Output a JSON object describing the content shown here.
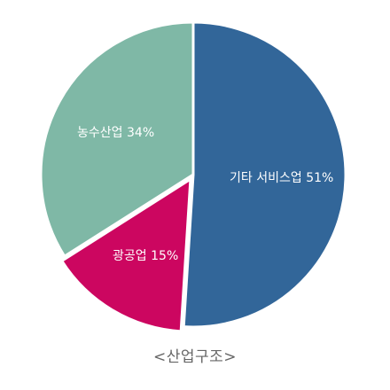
{
  "chart_data": {
    "type": "pie",
    "title": "",
    "caption": "<산업구조>",
    "slices": [
      {
        "label": "기타 서비스업",
        "value": 51,
        "value_text": "51%",
        "color": "#326699",
        "exploded": false
      },
      {
        "label": "광공업",
        "value": 15,
        "value_text": "15%",
        "color": "#cc0660",
        "exploded": true
      },
      {
        "label": "농수산업",
        "value": 34,
        "value_text": "34%",
        "color": "#7fb8a6",
        "exploded": false
      }
    ],
    "start_angle_deg": -90,
    "direction": "clockwise",
    "legend": "none"
  }
}
